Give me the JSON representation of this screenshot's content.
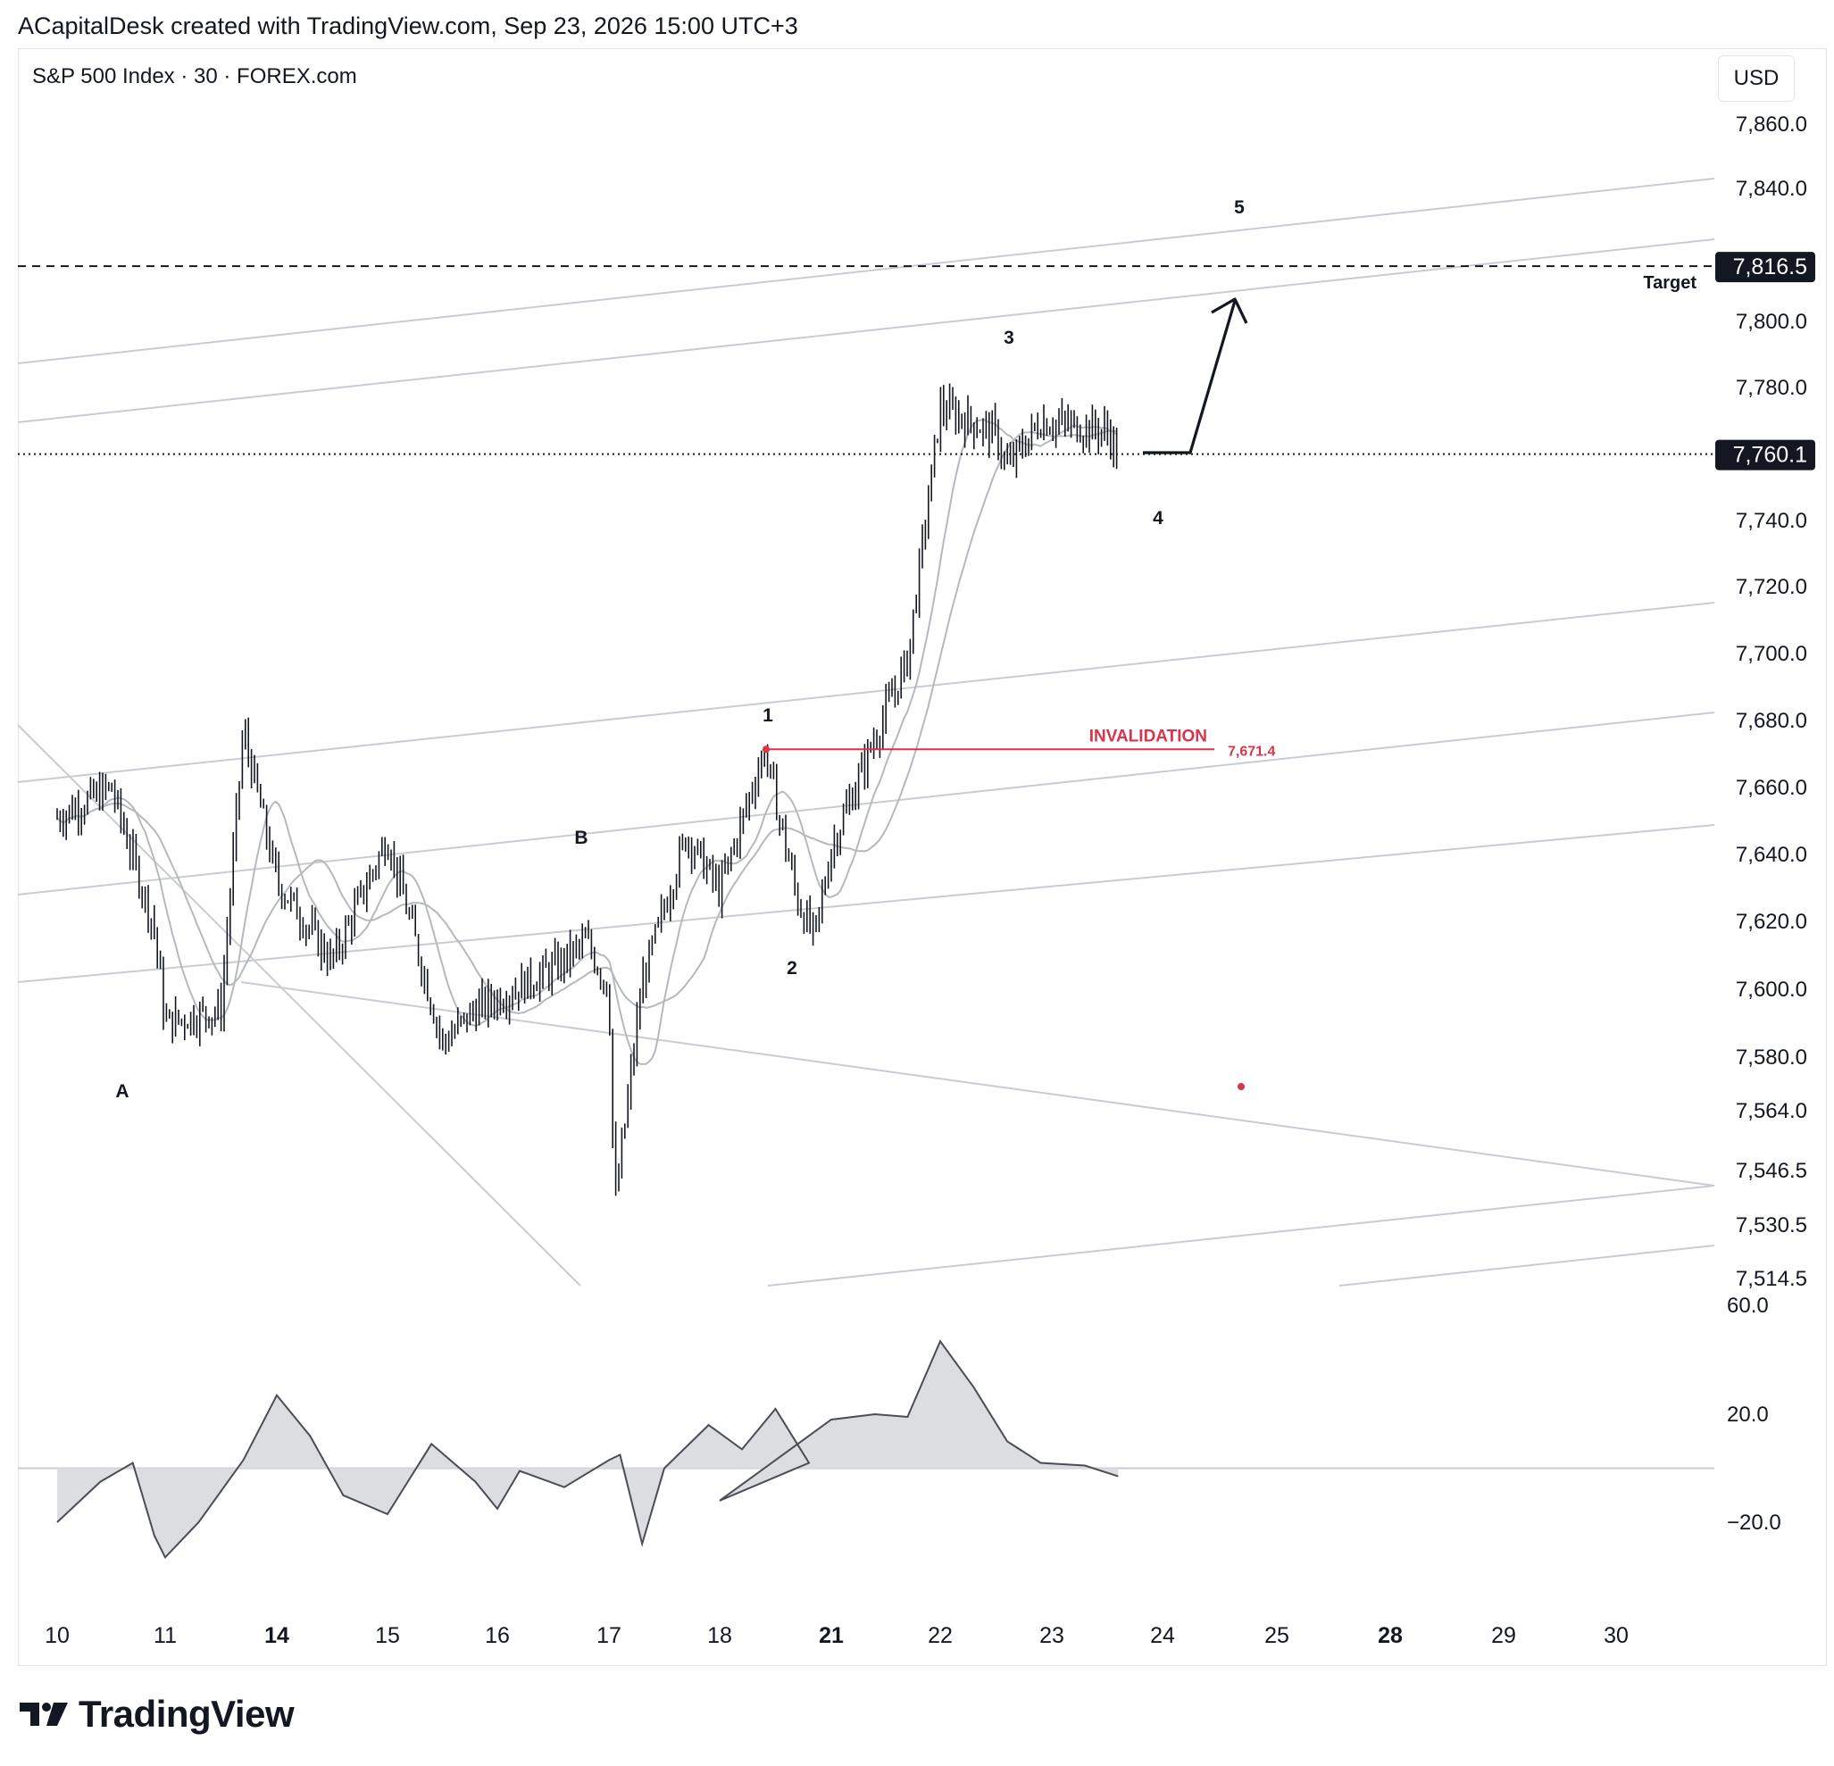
{
  "header": {
    "attribution": "ACapitalDesk created with TradingView.com, Sep 23, 2026 15:00 UTC+3"
  },
  "symbol": {
    "title": "S&P 500 Index · 30 · FOREX.com"
  },
  "currency": "USD",
  "branding": {
    "name": "TradingView"
  },
  "chart_data": {
    "type": "candlestick",
    "timeframe": "30",
    "price_axis": {
      "ticks": [
        7860.0,
        7840.0,
        7820.0,
        7800.0,
        7780.0,
        7760.0,
        7740.0,
        7720.0,
        7700.0,
        7680.0,
        7660.0,
        7640.0,
        7620.0,
        7600.0,
        7580.0,
        7564.0,
        7546.5,
        7530.5,
        7514.5
      ],
      "tick_labels": [
        "7,860.0",
        "7,840.0",
        "7,800.0",
        "7,780.0",
        "7,740.0",
        "7,720.0",
        "7,700.0",
        "7,680.0",
        "7,660.0",
        "7,640.0",
        "7,620.0",
        "7,600.0",
        "7,580.0",
        "7,564.0",
        "7,546.5",
        "7,530.5",
        "7,514.5"
      ]
    },
    "time_axis": {
      "labels": [
        "10",
        "11",
        "14",
        "15",
        "16",
        "17",
        "18",
        "21",
        "22",
        "23",
        "24",
        "25",
        "28",
        "29",
        "30"
      ],
      "bold_labels": [
        "14",
        "21",
        "28"
      ]
    },
    "last_price": {
      "value": 7760.1,
      "label": "7,760.1"
    },
    "target": {
      "value": 7816.5,
      "label": "7,816.5",
      "text": "Target"
    },
    "invalidation": {
      "value": 7671.4,
      "label": "7,671.4",
      "text": "INVALIDATION",
      "color": "#d9344a"
    },
    "wave_labels": [
      "A",
      "B",
      "1",
      "2",
      "3",
      "4",
      "5"
    ],
    "price_path": [
      [
        "10",
        7651
      ],
      [
        "10.5",
        7660
      ],
      [
        "10.9",
        7618
      ],
      [
        "11",
        7590
      ],
      [
        "11.5",
        7594
      ],
      [
        "13.7",
        7677
      ],
      [
        "14",
        7632
      ],
      [
        "14.5",
        7608
      ],
      [
        "15",
        7645
      ],
      [
        "15.5",
        7584
      ],
      [
        "15.8",
        7594
      ],
      [
        "16.5",
        7606
      ],
      [
        "16.8",
        7614
      ],
      [
        "17",
        7600
      ],
      [
        "17.05",
        7535
      ],
      [
        "17.3",
        7602
      ],
      [
        "17.7",
        7646
      ],
      [
        "18",
        7629
      ],
      [
        "18.4",
        7671.4
      ],
      [
        "18.7",
        7626
      ],
      [
        "18.85",
        7615
      ],
      [
        "21",
        7642
      ],
      [
        "21.4",
        7675
      ],
      [
        "21.7",
        7698
      ],
      [
        "22",
        7774
      ],
      [
        "22.5",
        7766
      ],
      [
        "22.6",
        7756
      ],
      [
        "22.9",
        7770
      ],
      [
        "23.3",
        7768
      ],
      [
        "23.5",
        7767
      ],
      [
        "23.6",
        7760.1
      ]
    ],
    "oscillator": {
      "axis_ticks": [
        60.0,
        20.0,
        -20.0
      ],
      "axis_labels": [
        "60.0",
        "20.0",
        "−20.0"
      ],
      "zero_line": 0,
      "path": [
        [
          "10",
          -20
        ],
        [
          "10.4",
          -5
        ],
        [
          "10.7",
          2
        ],
        [
          "10.9",
          -25
        ],
        [
          "11",
          -33
        ],
        [
          "11.3",
          -20
        ],
        [
          "11.7",
          3
        ],
        [
          "14",
          27
        ],
        [
          "14.3",
          12
        ],
        [
          "14.6",
          -10
        ],
        [
          "15",
          -17
        ],
        [
          "15.4",
          9
        ],
        [
          "15.8",
          -5
        ],
        [
          "16",
          -15
        ],
        [
          "16.2",
          -1
        ],
        [
          "16.6",
          -7
        ],
        [
          "17",
          3
        ],
        [
          "17.1",
          5
        ],
        [
          "17.3",
          -28
        ],
        [
          "17.5",
          0
        ],
        [
          "17.9",
          16
        ],
        [
          "18.2",
          7
        ],
        [
          "18.5",
          22
        ],
        [
          "18.8",
          2
        ],
        [
          "19",
          -12
        ],
        [
          "21",
          18
        ],
        [
          "21.4",
          20
        ],
        [
          "21.7",
          19
        ],
        [
          "22",
          47
        ],
        [
          "22.3",
          30
        ],
        [
          "22.6",
          10
        ],
        [
          "22.9",
          2
        ],
        [
          "23.3",
          1
        ],
        [
          "23.6",
          -3
        ]
      ]
    }
  }
}
